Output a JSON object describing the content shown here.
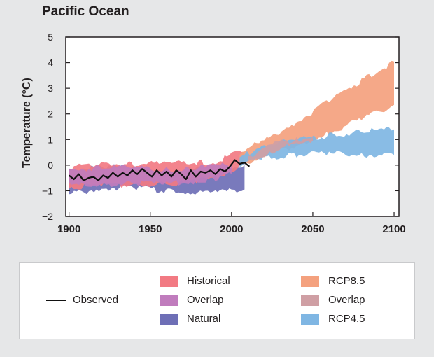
{
  "title": "Pacific Ocean",
  "chart_data": {
    "type": "area",
    "title": "Pacific Ocean",
    "ylabel": "Temperature (°C)",
    "xlabel": "",
    "xlim": [
      1898,
      2103
    ],
    "ylim": [
      -2,
      5
    ],
    "x_ticks": [
      1900,
      1950,
      2000,
      2050,
      2100
    ],
    "y_ticks": [
      5,
      4,
      3,
      2,
      1,
      0,
      -1,
      -2
    ],
    "y_tick_labels": [
      "5",
      "4",
      "3",
      "2",
      "1",
      "0",
      "−1",
      "−2"
    ],
    "grid": false,
    "legend_position": "below",
    "series": [
      {
        "name": "Natural",
        "kind": "band",
        "color": "#6e6fb6",
        "x": [
          1900,
          1920,
          1940,
          1960,
          1970,
          1990,
          2000,
          2008
        ],
        "lower": [
          -1.15,
          -0.9,
          -0.85,
          -1.0,
          -1.05,
          -1.1,
          -1.0,
          -0.95
        ],
        "upper": [
          -0.15,
          -0.05,
          -0.1,
          -0.2,
          -0.2,
          -0.1,
          -0.1,
          0.0
        ]
      },
      {
        "name": "Historical",
        "kind": "band",
        "color": "#f27a83",
        "x": [
          1900,
          1920,
          1940,
          1960,
          1980,
          1990,
          2000,
          2008
        ],
        "lower": [
          -0.85,
          -0.8,
          -0.75,
          -0.75,
          -0.6,
          -0.5,
          -0.2,
          0.0
        ],
        "upper": [
          -0.1,
          0.05,
          0.05,
          0.05,
          0.1,
          0.1,
          0.4,
          0.5
        ]
      },
      {
        "name": "Overlap",
        "kind": "band",
        "color": "#c07cbd",
        "x": [
          1900,
          1920,
          1940,
          1960,
          1975,
          1990,
          2000
        ],
        "lower": [
          -0.8,
          -0.75,
          -0.72,
          -0.72,
          -0.65,
          -0.55,
          -0.35
        ],
        "upper": [
          -0.2,
          -0.08,
          -0.1,
          -0.18,
          -0.15,
          -0.05,
          0.05
        ]
      },
      {
        "name": "RCP8.5",
        "kind": "band",
        "color": "#f4a17e",
        "x": [
          2005,
          2020,
          2040,
          2060,
          2080,
          2100
        ],
        "lower": [
          0.0,
          0.35,
          0.75,
          1.25,
          1.8,
          2.35
        ],
        "upper": [
          0.5,
          0.95,
          1.7,
          2.5,
          3.3,
          4.05
        ]
      },
      {
        "name": "RCP4.5",
        "kind": "band",
        "color": "#7fb6e3",
        "x": [
          2005,
          2020,
          2040,
          2060,
          2080,
          2100
        ],
        "lower": [
          -0.05,
          0.3,
          0.4,
          0.45,
          0.4,
          0.4
        ],
        "upper": [
          0.3,
          0.8,
          1.0,
          1.15,
          1.3,
          1.4
        ]
      },
      {
        "name": "Overlap",
        "kind": "band",
        "color": "#cf9fa4",
        "x": [
          2010,
          2025,
          2040,
          2050
        ],
        "lower": [
          0.15,
          0.55,
          0.8,
          0.95
        ],
        "upper": [
          0.35,
          0.8,
          1.0,
          1.1
        ]
      },
      {
        "name": "Observed",
        "kind": "line",
        "color": "#111111",
        "x": [
          1900,
          1903,
          1906,
          1909,
          1912,
          1915,
          1918,
          1921,
          1924,
          1927,
          1930,
          1933,
          1936,
          1939,
          1942,
          1945,
          1948,
          1951,
          1954,
          1957,
          1960,
          1963,
          1966,
          1969,
          1972,
          1975,
          1978,
          1981,
          1984,
          1987,
          1990,
          1993,
          1996,
          1999,
          2002,
          2005,
          2008,
          2011
        ],
        "y": [
          -0.4,
          -0.55,
          -0.35,
          -0.6,
          -0.5,
          -0.45,
          -0.6,
          -0.4,
          -0.5,
          -0.3,
          -0.45,
          -0.3,
          -0.4,
          -0.2,
          -0.35,
          -0.15,
          -0.3,
          -0.45,
          -0.2,
          -0.4,
          -0.25,
          -0.45,
          -0.2,
          -0.35,
          -0.55,
          -0.2,
          -0.45,
          -0.25,
          -0.3,
          -0.2,
          -0.35,
          -0.15,
          -0.25,
          -0.05,
          0.2,
          0.05,
          0.1,
          -0.05
        ]
      }
    ]
  },
  "legend": {
    "observed": "Observed",
    "historical": "Historical",
    "overlap_hist": "Overlap",
    "natural": "Natural",
    "rcp85": "RCP8.5",
    "overlap_rcp": "Overlap",
    "rcp45": "RCP4.5"
  },
  "colors": {
    "historical": "#f27a83",
    "overlap_hist": "#c07cbd",
    "natural": "#6e6fb6",
    "rcp85": "#f4a17e",
    "overlap_rcp": "#cf9fa4",
    "rcp45": "#7fb6e3"
  }
}
